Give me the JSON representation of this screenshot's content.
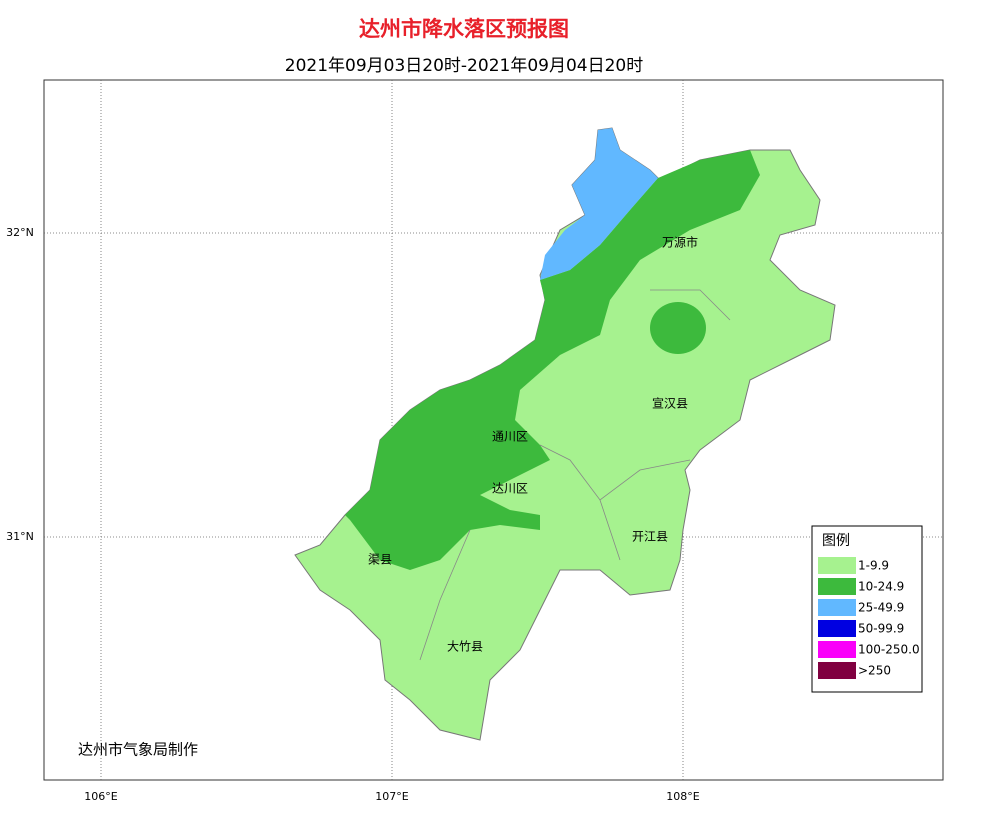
{
  "title": "达州市降水落区预报图",
  "subtitle": "2021年09月03日20时-2021年09月04日20时",
  "lon_ticks": [
    {
      "value": 106,
      "label": "106°E"
    },
    {
      "value": 107,
      "label": "107°E"
    },
    {
      "value": 108,
      "label": "108°E"
    }
  ],
  "lat_ticks": [
    {
      "value": 32,
      "label": "32°N"
    },
    {
      "value": 31,
      "label": "31°N"
    }
  ],
  "places": [
    "万源市",
    "宣汉县",
    "通川区",
    "达川区",
    "开江县",
    "渠县",
    "大竹县"
  ],
  "legend": {
    "title": "图例",
    "items": [
      {
        "label": "1-9.9",
        "color": "#a6f28f"
      },
      {
        "label": "10-24.9",
        "color": "#3dba3d"
      },
      {
        "label": "25-49.9",
        "color": "#61b8ff"
      },
      {
        "label": "50-99.9",
        "color": "#0000e1"
      },
      {
        "label": "100-250.0",
        "color": "#fa00fa"
      },
      {
        "label": ">250",
        "color": "#800040"
      }
    ]
  },
  "credit": "达州市气象局制作"
}
